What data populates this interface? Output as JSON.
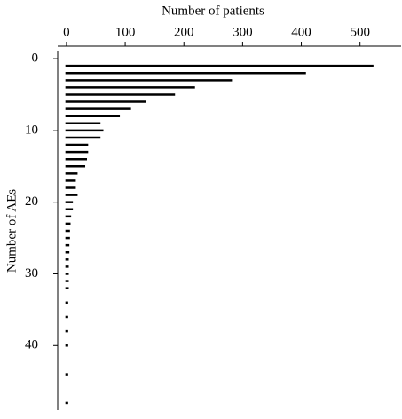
{
  "chart_data": {
    "type": "hbar",
    "x_label": "Number of patients",
    "y_label": "Number of AEs",
    "y": [
      1,
      2,
      3,
      4,
      5,
      6,
      7,
      8,
      9,
      10,
      11,
      12,
      13,
      14,
      15,
      16,
      17,
      18,
      19,
      20,
      21,
      22,
      23,
      24,
      25,
      26,
      27,
      28,
      29,
      30,
      31,
      32,
      34,
      36,
      38,
      40,
      44,
      48
    ],
    "values": [
      521,
      406,
      280,
      217,
      183,
      133,
      108,
      89,
      56,
      61,
      56,
      35,
      35,
      33,
      30,
      17,
      14,
      14,
      17,
      9,
      9,
      6,
      5,
      4,
      4,
      3,
      3,
      2,
      2,
      2,
      2,
      2,
      1,
      1,
      1,
      1,
      1,
      1
    ],
    "color": "#000000",
    "xlim": [
      -15,
      570
    ],
    "xticks": [
      0,
      100,
      200,
      300,
      400,
      500
    ],
    "ylim": [
      -1,
      49
    ],
    "yticks": [
      0,
      10,
      20,
      30,
      40
    ],
    "x_axis_position": "top",
    "y_inverted": true
  }
}
